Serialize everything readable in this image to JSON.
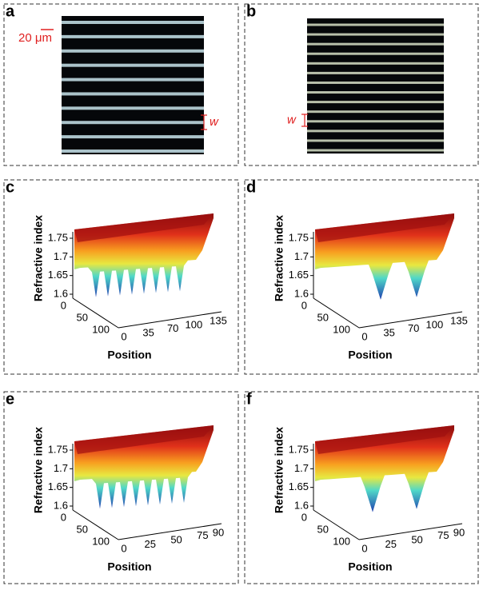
{
  "panels": [
    {
      "label": "a",
      "scale_bar": "20 μm",
      "width_label": "w"
    },
    {
      "label": "b",
      "width_label": "w"
    },
    {
      "label": "c",
      "y_label": "Refractive index",
      "x_label": "Position",
      "z_ticks": [
        1.75,
        1.7,
        1.65,
        1.6
      ],
      "depth_ticks": [
        0,
        50,
        100
      ],
      "x_ticks": [
        0,
        35,
        70,
        100,
        135
      ]
    },
    {
      "label": "d",
      "y_label": "Refractive index",
      "x_label": "Position",
      "z_ticks": [
        1.75,
        1.7,
        1.65,
        1.6
      ],
      "depth_ticks": [
        0,
        50,
        100
      ],
      "x_ticks": [
        0,
        35,
        70,
        100,
        135
      ]
    },
    {
      "label": "e",
      "y_label": "Refractive index",
      "x_label": "Position",
      "z_ticks": [
        1.75,
        1.7,
        1.65,
        1.6
      ],
      "depth_ticks": [
        0,
        50,
        100
      ],
      "x_ticks": [
        0,
        25,
        50,
        75,
        90
      ]
    },
    {
      "label": "f",
      "y_label": "Refractive index",
      "x_label": "Position",
      "z_ticks": [
        1.75,
        1.7,
        1.65,
        1.6
      ],
      "depth_ticks": [
        0,
        50,
        100
      ],
      "x_ticks": [
        0,
        25,
        50,
        75,
        90
      ]
    }
  ]
}
